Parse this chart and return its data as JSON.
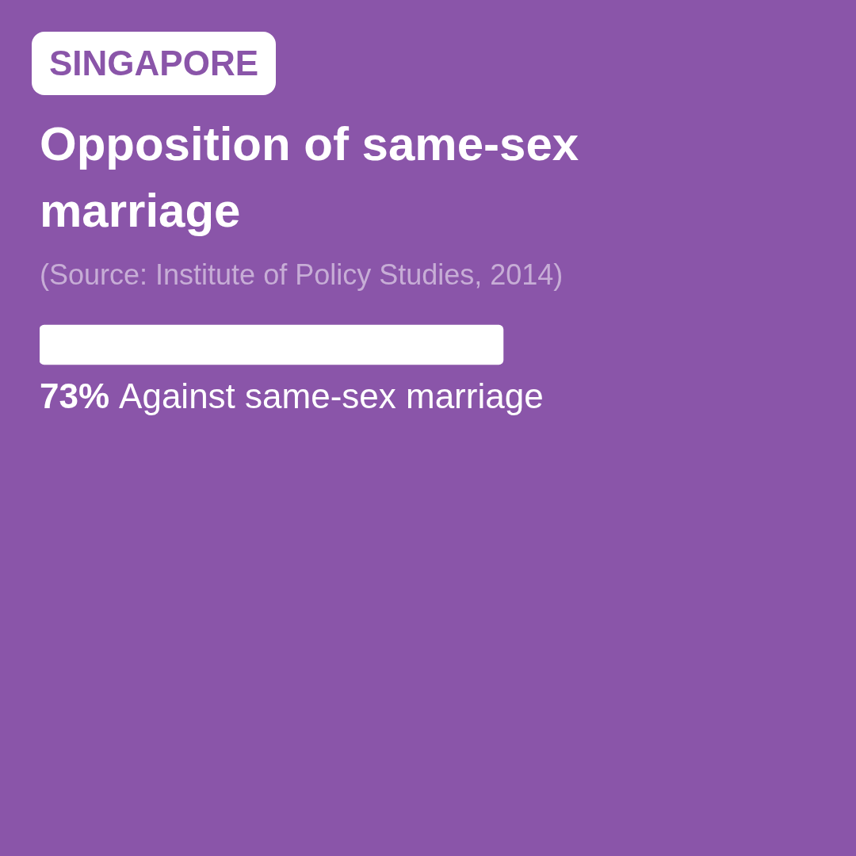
{
  "chart_data": {
    "type": "bar",
    "orientation": "horizontal",
    "subtitle": "SINGAPORE",
    "title": "Opposition of same-sex marriage",
    "annotations": [
      "(Source: Institute of Policy Studies, 2014)"
    ],
    "categories": [
      "Against same-sex marriage"
    ],
    "values": [
      73
    ],
    "value_labels": [
      "73%"
    ],
    "color": "#ffffff",
    "tick_labels": false
  }
}
